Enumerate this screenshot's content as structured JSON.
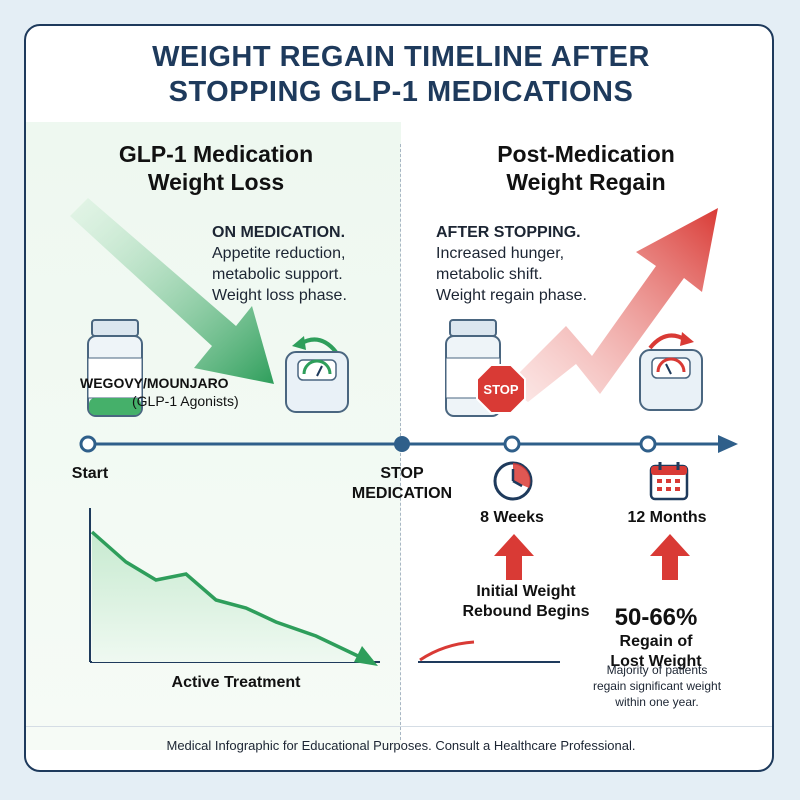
{
  "title": {
    "line1": "WEIGHT REGAIN TIMELINE AFTER",
    "line2": "STOPPING GLP-1 MEDICATIONS"
  },
  "left_panel": {
    "heading_line1": "GLP-1 Medication",
    "heading_line2": "Weight Loss",
    "desc_lead": "ON MEDICATION.",
    "desc_line1": "Appetite reduction,",
    "desc_line2": "metabolic support.",
    "desc_line3": "Weight loss phase.",
    "drug_line1": "WEGOVY/MOUNJARO",
    "drug_line2": "(GLP-1 Agonists)",
    "chart_caption": "Active Treatment",
    "accent_color": "#2e9e5b"
  },
  "right_panel": {
    "heading_line1": "Post-Medication",
    "heading_line2": "Weight Regain",
    "desc_lead": "AFTER STOPPING.",
    "desc_line1": "Increased hunger,",
    "desc_line2": "metabolic shift.",
    "desc_line3": "Weight regain phase.",
    "stop_sign": "STOP",
    "accent_color": "#d93a35"
  },
  "timeline": {
    "start_label": "Start",
    "stop_label_line1": "STOP",
    "stop_label_line2": "MEDICATION",
    "week_label": "8 Weeks",
    "month_label": "12 Months",
    "line_color": "#2f5f8a"
  },
  "callouts": {
    "rebound_line1": "Initial Weight",
    "rebound_line2": "Rebound Begins",
    "regain_pct": "50-66%",
    "regain_line1": "Regain of",
    "regain_line2": "Lost Weight",
    "note_line1": "Majority of patients",
    "note_line2": "regain significant weight",
    "note_line3": "within one year."
  },
  "footer": "Medical Infographic for Educational Purposes. Consult a Healthcare Professional.",
  "icons": [
    "medicine-bottle-icon",
    "scale-icon",
    "stop-sign-icon",
    "clock-icon",
    "calendar-icon",
    "curved-arrow-icon"
  ]
}
